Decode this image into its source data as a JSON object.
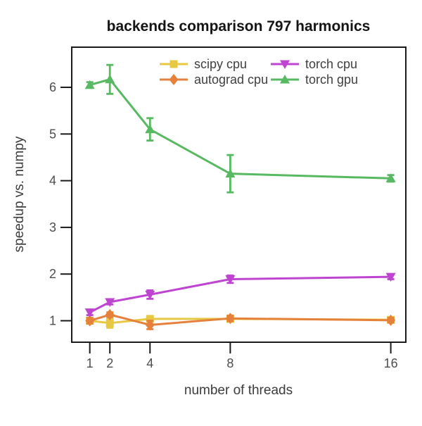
{
  "chart_data": {
    "type": "line",
    "title": "backends comparison 797 harmonics",
    "xlabel": "number of threads",
    "ylabel": "speedup vs. numpy",
    "x": [
      1,
      2,
      4,
      8,
      16
    ],
    "x_tick_labels": [
      "1",
      "2",
      "4",
      "8",
      "16"
    ],
    "y_tick_values": [
      1,
      2,
      3,
      4,
      5,
      6
    ],
    "y_tick_labels": [
      "1",
      "2",
      "3",
      "4",
      "5",
      "6"
    ],
    "xlim": [
      0.1,
      16.75
    ],
    "ylim": [
      0.54,
      6.86
    ],
    "grid": false,
    "legend_position": "upper-center-inside, 2 columns, no frame",
    "series": [
      {
        "name": "scipy cpu",
        "color": "#e7c843",
        "marker": "square",
        "values": [
          1.0,
          0.95,
          1.04,
          1.04,
          1.02
        ],
        "yerr": [
          0.05,
          0.1,
          0.05,
          0.05,
          0.05
        ]
      },
      {
        "name": "autograd cpu",
        "color": "#e6813c",
        "marker": "diamond",
        "values": [
          1.0,
          1.13,
          0.91,
          1.05,
          1.01
        ],
        "yerr": [
          0.06,
          0.05,
          0.09,
          0.06,
          0.05
        ]
      },
      {
        "name": "torch cpu",
        "color": "#bf44d1",
        "marker": "triangle-down",
        "values": [
          1.18,
          1.4,
          1.56,
          1.89,
          1.94
        ],
        "yerr": [
          0.06,
          0.05,
          0.09,
          0.08,
          0.05
        ]
      },
      {
        "name": "torch gpu",
        "color": "#57b962",
        "marker": "triangle-up",
        "values": [
          6.05,
          6.17,
          5.1,
          4.15,
          4.05
        ],
        "yerr": [
          0.06,
          0.31,
          0.24,
          0.4,
          0.07
        ]
      }
    ],
    "legend_column_order": [
      "scipy cpu",
      "autograd cpu",
      "torch cpu",
      "torch gpu"
    ]
  }
}
